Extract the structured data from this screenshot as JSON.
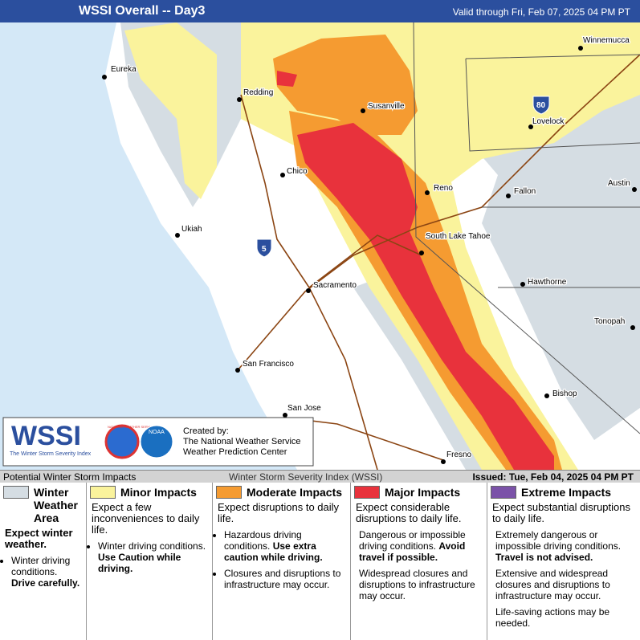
{
  "header": {
    "title": "WSSI Overall -- Day3",
    "valid": "Valid through Fri, Feb 07, 2025 04 PM PT"
  },
  "map": {
    "cities": [
      "Eureka",
      "Redding",
      "Susanville",
      "Winnemucca",
      "Lovelock",
      "Chico",
      "Reno",
      "Fallon",
      "Austin",
      "Ukiah",
      "South Lake Tahoe",
      "Sacramento",
      "Hawthorne",
      "Tonopah",
      "San Francisco",
      "Bishop",
      "San Jose",
      "Fresno"
    ],
    "highways": [
      "80",
      "5"
    ]
  },
  "logo": {
    "wssi": "WSSI",
    "tagline": "The Winter Storm Severity Index",
    "nws": "NATIONAL WEATHER SERVICE",
    "noaa": "NOAA",
    "credit": [
      "Created by:",
      "The National Weather Service",
      "Weather Prediction Center"
    ]
  },
  "bar": {
    "left": "Potential Winter Storm Impacts",
    "center": "Winter Storm Severity Index (WSSI)",
    "right": "Issued: Tue, Feb 04, 2025 04 PM PT"
  },
  "legend": [
    {
      "title": "Winter Weather Area",
      "lead": "Expect winter weather.",
      "bullets": [
        {
          "text": "Winter driving conditions.",
          "bold": "Drive carefully."
        }
      ]
    },
    {
      "title": "Minor Impacts",
      "lead": "Expect a few inconveniences to daily life.",
      "bullets": [
        {
          "text": "Winter driving conditions.",
          "bold": "Use Caution while driving."
        }
      ]
    },
    {
      "title": "Moderate Impacts",
      "lead": "Expect disruptions to daily life.",
      "bullets": [
        {
          "text": "Hazardous driving conditions.",
          "bold": "Use extra caution while driving."
        },
        {
          "text": "Closures and disruptions to infrastructure may occur."
        }
      ]
    },
    {
      "title": "Major Impacts",
      "lead": "Expect considerable disruptions to daily life.",
      "bullets": [
        {
          "text": "Dangerous or impossible driving conditions.",
          "bold": "Avoid travel if possible."
        },
        {
          "text": "Widespread closures and disruptions to infrastructure may occur."
        }
      ]
    },
    {
      "title": "Extreme Impacts",
      "lead": "Expect substantial disruptions to daily life.",
      "bullets": [
        {
          "text": "Extremely dangerous or impossible driving conditions.",
          "bold": "Travel is not advised."
        },
        {
          "text": "Extensive and widespread closures and disruptions to infrastructure may occur."
        },
        {
          "text": "Life-saving actions may be needed."
        }
      ]
    }
  ]
}
